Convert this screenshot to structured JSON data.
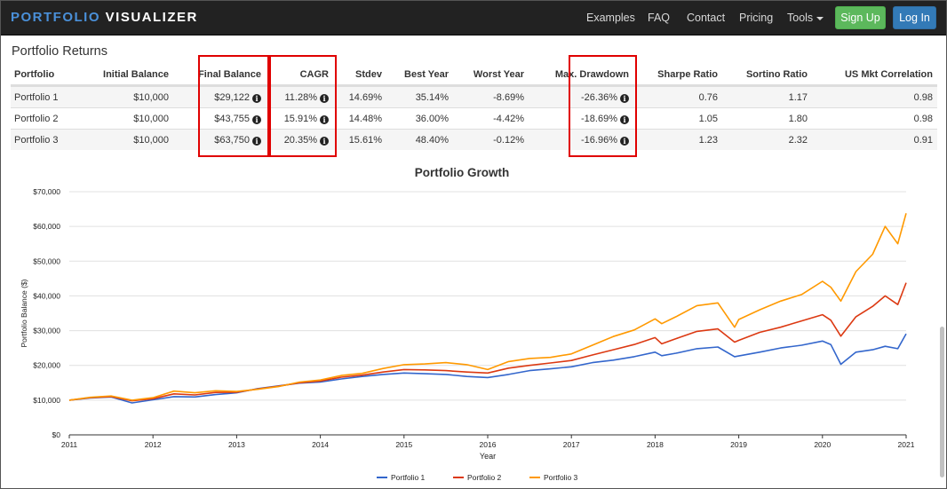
{
  "navbar": {
    "brand_part1": "PORTFOLIO",
    "brand_part2": "VISUALIZER",
    "links": [
      "Examples",
      "FAQ",
      "Contact",
      "Pricing",
      "Tools"
    ],
    "signup_label": "Sign Up",
    "login_label": "Log In"
  },
  "returns": {
    "title": "Portfolio Returns",
    "columns": [
      "Portfolio",
      "Initial Balance",
      "Final Balance",
      "CAGR",
      "Stdev",
      "Best Year",
      "Worst Year",
      "Max. Drawdown",
      "Sharpe Ratio",
      "Sortino Ratio",
      "US Mkt Correlation"
    ],
    "rows": [
      [
        "Portfolio 1",
        "$10,000",
        "$29,122",
        "11.28%",
        "14.69%",
        "35.14%",
        "-8.69%",
        "-26.36%",
        "0.76",
        "1.17",
        "0.98"
      ],
      [
        "Portfolio 2",
        "$10,000",
        "$43,755",
        "15.91%",
        "14.48%",
        "36.00%",
        "-4.42%",
        "-18.69%",
        "1.05",
        "1.80",
        "0.98"
      ],
      [
        "Portfolio 3",
        "$10,000",
        "$63,750",
        "20.35%",
        "15.61%",
        "48.40%",
        "-0.12%",
        "-16.96%",
        "1.23",
        "2.32",
        "0.91"
      ]
    ],
    "info_icon": "i"
  },
  "chart_data": {
    "type": "line",
    "title": "Portfolio Growth",
    "xlabel": "Year",
    "ylabel": "Portfolio Balance ($)",
    "x_ticks": [
      "2011",
      "2012",
      "2013",
      "2014",
      "2015",
      "2016",
      "2017",
      "2018",
      "2019",
      "2020",
      "2021"
    ],
    "y_ticks": [
      "$0",
      "$10,000",
      "$20,000",
      "$30,000",
      "$40,000",
      "$50,000",
      "$60,000",
      "$70,000"
    ],
    "xlim": [
      2011,
      2021
    ],
    "ylim": [
      0,
      70000
    ],
    "grid": true,
    "legend": "bottom-center",
    "series": [
      {
        "name": "Portfolio 1",
        "color": "#3366cc",
        "x": [
          2011,
          2011.25,
          2011.5,
          2011.75,
          2012,
          2012.25,
          2012.5,
          2012.75,
          2013,
          2013.25,
          2013.5,
          2013.75,
          2014,
          2014.25,
          2014.5,
          2014.75,
          2015,
          2015.25,
          2015.5,
          2015.75,
          2016,
          2016.25,
          2016.5,
          2016.75,
          2017,
          2017.25,
          2017.5,
          2017.75,
          2018,
          2018.08,
          2018.25,
          2018.5,
          2018.75,
          2018.95,
          2019,
          2019.25,
          2019.5,
          2019.75,
          2020,
          2020.1,
          2020.22,
          2020.4,
          2020.6,
          2020.75,
          2020.9,
          2021
        ],
        "values": [
          10000,
          10600,
          10900,
          9200,
          10100,
          11000,
          10900,
          11600,
          12100,
          13300,
          14100,
          14900,
          15200,
          16100,
          16800,
          17400,
          17800,
          17600,
          17400,
          16800,
          16500,
          17400,
          18500,
          19000,
          19600,
          20800,
          21500,
          22500,
          23800,
          22800,
          23500,
          24800,
          25300,
          22500,
          22700,
          23800,
          25000,
          25800,
          27000,
          26000,
          20300,
          23800,
          24500,
          25500,
          24800,
          29100
        ]
      },
      {
        "name": "Portfolio 2",
        "color": "#dc3912",
        "x": [
          2011,
          2011.25,
          2011.5,
          2011.75,
          2012,
          2012.25,
          2012.5,
          2012.75,
          2013,
          2013.25,
          2013.5,
          2013.75,
          2014,
          2014.25,
          2014.5,
          2014.75,
          2015,
          2015.25,
          2015.5,
          2015.75,
          2016,
          2016.25,
          2016.5,
          2016.75,
          2017,
          2017.25,
          2017.5,
          2017.75,
          2018,
          2018.08,
          2018.25,
          2018.5,
          2018.75,
          2018.95,
          2019,
          2019.25,
          2019.5,
          2019.75,
          2020,
          2020.1,
          2020.22,
          2020.4,
          2020.6,
          2020.75,
          2020.9,
          2021
        ],
        "values": [
          10000,
          10700,
          11000,
          9800,
          10400,
          11800,
          11500,
          12200,
          12300,
          13200,
          14000,
          15000,
          15500,
          16600,
          17200,
          18100,
          18800,
          18700,
          18500,
          18100,
          17800,
          19200,
          20000,
          20700,
          21400,
          23000,
          24500,
          26000,
          28000,
          26200,
          27700,
          29800,
          30500,
          26700,
          27200,
          29500,
          31000,
          32800,
          34600,
          33000,
          28400,
          34000,
          37000,
          40000,
          37500,
          43800
        ]
      },
      {
        "name": "Portfolio 3",
        "color": "#ff9900",
        "x": [
          2011,
          2011.25,
          2011.5,
          2011.75,
          2012,
          2012.25,
          2012.5,
          2012.75,
          2013,
          2013.25,
          2013.5,
          2013.75,
          2014,
          2014.25,
          2014.5,
          2014.75,
          2015,
          2015.25,
          2015.5,
          2015.75,
          2016,
          2016.25,
          2016.5,
          2016.75,
          2017,
          2017.25,
          2017.5,
          2017.75,
          2018,
          2018.08,
          2018.25,
          2018.5,
          2018.75,
          2018.95,
          2019,
          2019.25,
          2019.5,
          2019.75,
          2020,
          2020.1,
          2020.22,
          2020.4,
          2020.6,
          2020.75,
          2020.9,
          2021
        ],
        "values": [
          10000,
          10800,
          11200,
          10000,
          10700,
          12600,
          12100,
          12700,
          12500,
          13100,
          13900,
          15200,
          15800,
          17100,
          17700,
          19100,
          20200,
          20400,
          20800,
          20200,
          18800,
          21100,
          22000,
          22300,
          23300,
          25800,
          28300,
          30200,
          33400,
          32000,
          34000,
          37200,
          38000,
          31000,
          33200,
          36000,
          38500,
          40400,
          44200,
          42500,
          38500,
          47000,
          52000,
          60000,
          55000,
          63800
        ]
      }
    ]
  }
}
